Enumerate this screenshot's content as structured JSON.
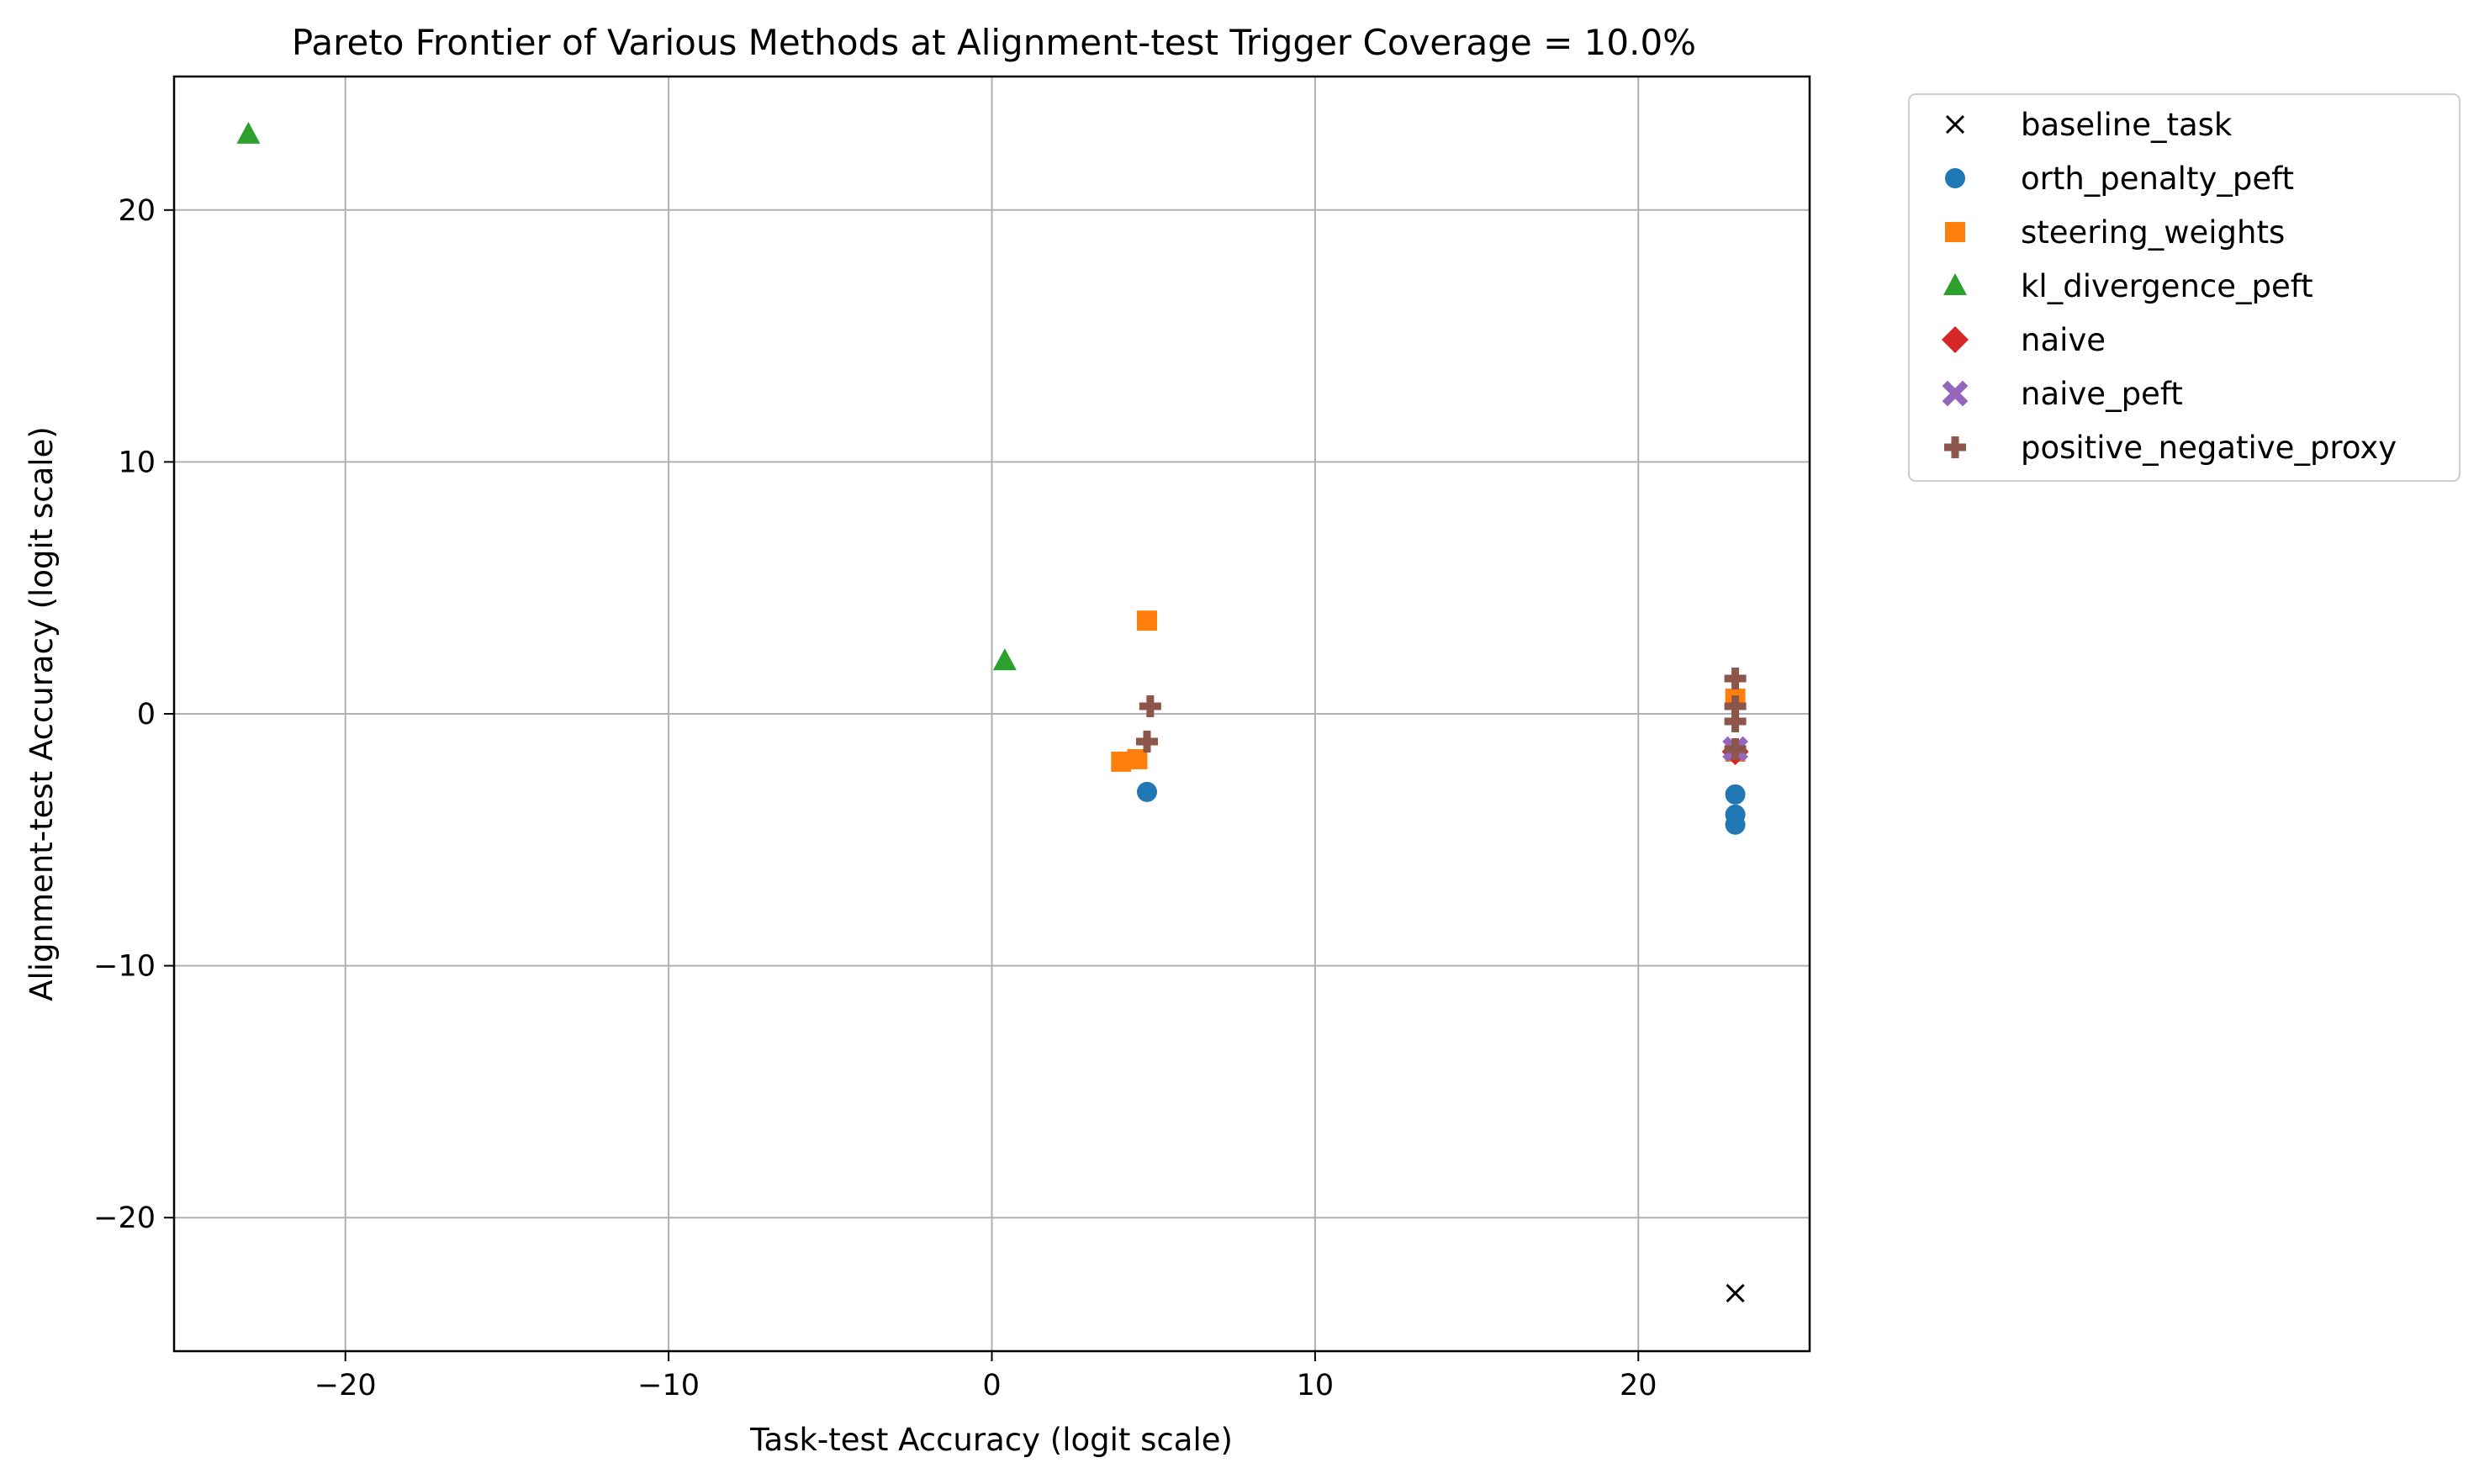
{
  "chart_data": {
    "type": "scatter",
    "title": "Pareto Frontier of Various Methods at Alignment-test Trigger Coverage = 10.0%",
    "xlabel": "Task-test Accuracy (logit scale)",
    "ylabel": "Alignment-test Accuracy (logit scale)",
    "xlim": [
      -25.3,
      25.3
    ],
    "ylim": [
      -25.3,
      25.3
    ],
    "xticks": [
      -20,
      -10,
      0,
      10,
      20
    ],
    "yticks": [
      -20,
      -10,
      0,
      10,
      20
    ],
    "xtick_labels": [
      "−20",
      "−10",
      "0",
      "10",
      "20"
    ],
    "ytick_labels": [
      "−20",
      "−10",
      "0",
      "10",
      "20"
    ],
    "grid": true,
    "legend_position": "outside-upper-right",
    "series": [
      {
        "name": "baseline_task",
        "marker": "x",
        "color": "#000000",
        "points": [
          [
            23.0,
            -23.0
          ]
        ]
      },
      {
        "name": "orth_penalty_peft",
        "marker": "circle",
        "color": "#1f77b4",
        "points": [
          [
            4.8,
            -3.1
          ],
          [
            23.0,
            -3.2
          ],
          [
            23.0,
            -4.0
          ],
          [
            23.0,
            -4.4
          ]
        ]
      },
      {
        "name": "steering_weights",
        "marker": "square",
        "color": "#ff7f0e",
        "points": [
          [
            4.8,
            3.7
          ],
          [
            4.0,
            -1.9
          ],
          [
            4.5,
            -1.8
          ],
          [
            23.0,
            0.6
          ],
          [
            23.0,
            -1.5
          ]
        ]
      },
      {
        "name": "kl_divergence_peft",
        "marker": "triangle",
        "color": "#2ca02c",
        "points": [
          [
            -23.0,
            23.0
          ],
          [
            0.4,
            2.1
          ]
        ]
      },
      {
        "name": "naive",
        "marker": "diamond",
        "color": "#d62728",
        "points": [
          [
            23.0,
            -1.5
          ]
        ]
      },
      {
        "name": "naive_peft",
        "marker": "x-filled",
        "color": "#9467bd",
        "points": [
          [
            23.0,
            -1.4
          ]
        ]
      },
      {
        "name": "positive_negative_proxy",
        "marker": "plus-filled",
        "color": "#8c564b",
        "points": [
          [
            4.9,
            0.3
          ],
          [
            4.8,
            -1.1
          ],
          [
            23.0,
            1.4
          ],
          [
            23.0,
            0.3
          ],
          [
            23.0,
            -0.3
          ],
          [
            23.0,
            -1.4
          ]
        ]
      }
    ]
  }
}
